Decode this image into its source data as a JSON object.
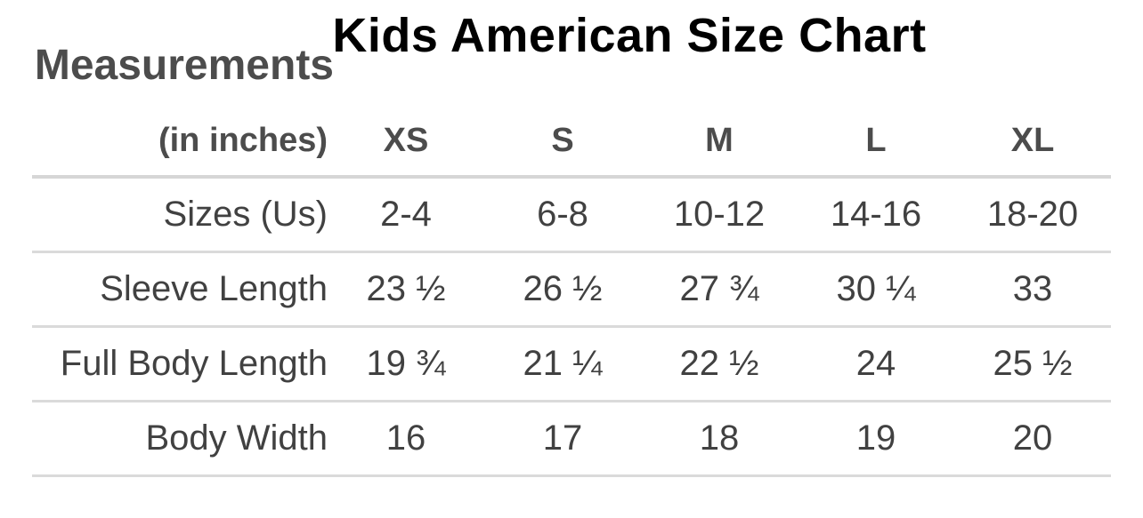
{
  "colors": {
    "background": "#ffffff",
    "title_text": "#000000",
    "header_text": "#4c4c4c",
    "body_text": "#414141",
    "divider": "#dadada"
  },
  "chart_data": {
    "type": "table",
    "title": "Kids American Size Chart",
    "corner_label": "Measurements",
    "units_label": "(in inches)",
    "columns": [
      "XS",
      "S",
      "M",
      "L",
      "XL"
    ],
    "row_headers": [
      "Sizes (Us)",
      "Sleeve Length",
      "Full Body Length",
      "Body Width"
    ],
    "rows": [
      {
        "label": "Sizes (Us)",
        "values": [
          "2-4",
          "6-8",
          "10-12",
          "14-16",
          "18-20"
        ]
      },
      {
        "label": "Sleeve Length",
        "values": [
          "23 ½",
          "26 ½",
          "27 ¾",
          "30 ¼",
          "33"
        ]
      },
      {
        "label": "Full Body Length",
        "values": [
          "19 ¾",
          "21 ¼",
          "22 ½",
          "24",
          "25 ½"
        ]
      },
      {
        "label": "Body Width",
        "values": [
          "16",
          "17",
          "18",
          "19",
          "20"
        ]
      }
    ],
    "layout": {
      "grid": "horizontal dividers only, no vertical lines",
      "label_column_alignment": "right",
      "value_alignment": "center"
    }
  }
}
